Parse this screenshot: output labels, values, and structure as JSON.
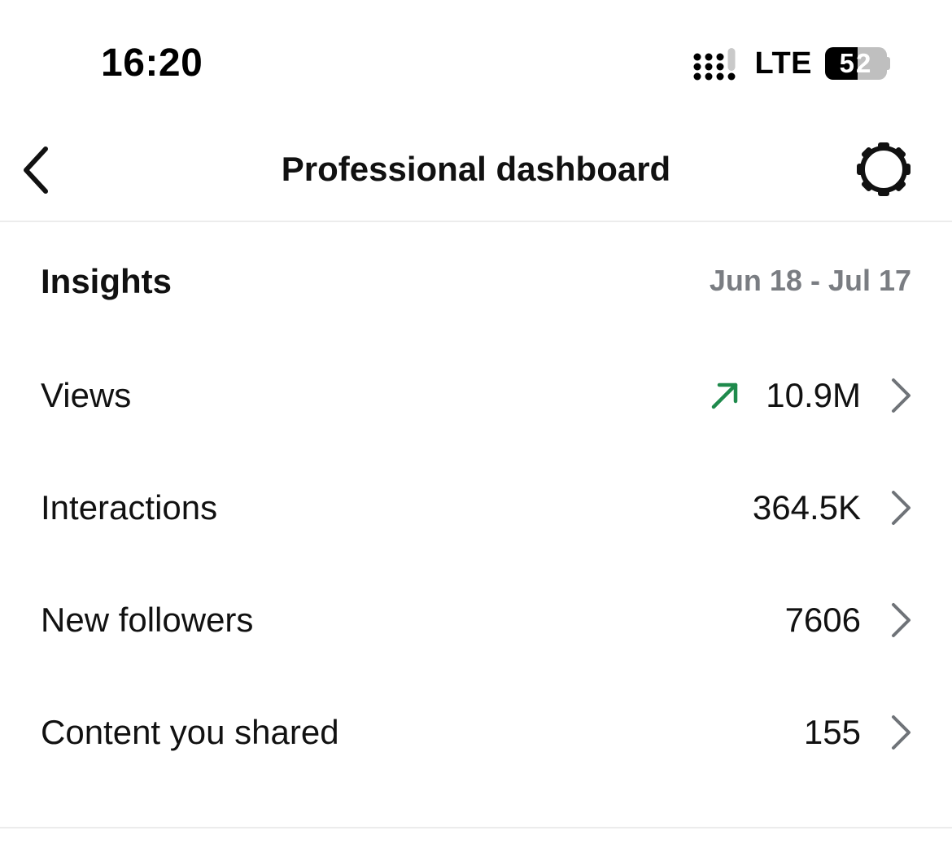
{
  "status_bar": {
    "time": "16:20",
    "network": "LTE",
    "battery": "52",
    "battery_level_percent": 52
  },
  "nav": {
    "title": "Professional dashboard",
    "back_icon": "chevron-left-icon",
    "settings_icon": "gear-icon"
  },
  "insights": {
    "title": "Insights",
    "date_range": "Jun 18 - Jul 17"
  },
  "metrics": [
    {
      "label": "Views",
      "value": "10.9M",
      "trend": "up"
    },
    {
      "label": "Interactions",
      "value": "364.5K"
    },
    {
      "label": "New followers",
      "value": "7606"
    },
    {
      "label": "Content you shared",
      "value": "155"
    }
  ],
  "colors": {
    "trend_up": "#1f8a4c",
    "secondary_text": "#7a7d82",
    "chevron": "#6f7378",
    "divider": "#ececec"
  }
}
